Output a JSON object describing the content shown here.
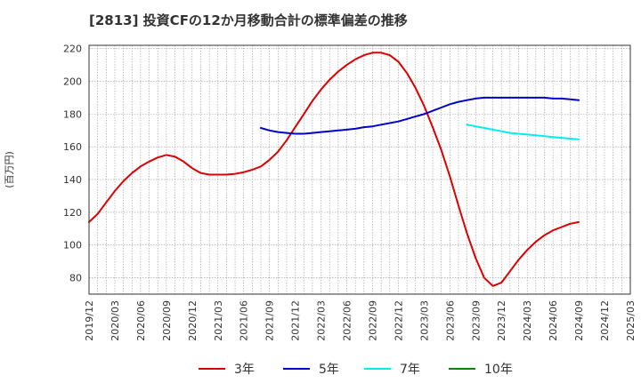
{
  "title": "[2813]  投資CFの12か月移動合計の標準偏差の推移",
  "chart_data": {
    "type": "line",
    "title": "[2813]  投資CFの12か月移動合計の標準偏差の推移",
    "xlabel": "",
    "ylabel": "(百万円)",
    "ylim": [
      70,
      222
    ],
    "yticks": [
      80,
      100,
      120,
      140,
      160,
      180,
      200,
      220
    ],
    "xticks": [
      "2019/12",
      "2020/03",
      "2020/06",
      "2020/09",
      "2020/12",
      "2021/03",
      "2021/06",
      "2021/09",
      "2021/12",
      "2022/03",
      "2022/06",
      "2022/09",
      "2022/12",
      "2023/03",
      "2023/06",
      "2023/09",
      "2023/12",
      "2024/03",
      "2024/06",
      "2024/09",
      "2024/12",
      "2025/03"
    ],
    "grid": true,
    "legend_position": "bottom",
    "series": [
      {
        "name": "3年",
        "color": "#dd0000",
        "x": [
          "2019/12",
          "2020/01",
          "2020/02",
          "2020/03",
          "2020/04",
          "2020/05",
          "2020/06",
          "2020/07",
          "2020/08",
          "2020/09",
          "2020/10",
          "2020/11",
          "2020/12",
          "2021/01",
          "2021/02",
          "2021/03",
          "2021/04",
          "2021/05",
          "2021/06",
          "2021/07",
          "2021/08",
          "2021/09",
          "2021/10",
          "2021/11",
          "2021/12",
          "2022/01",
          "2022/02",
          "2022/03",
          "2022/04",
          "2022/05",
          "2022/06",
          "2022/07",
          "2022/08",
          "2022/09",
          "2022/10",
          "2022/11",
          "2022/12",
          "2023/01",
          "2023/02",
          "2023/03",
          "2023/04",
          "2023/05",
          "2023/06",
          "2023/07",
          "2023/08",
          "2023/09",
          "2023/10",
          "2023/11",
          "2023/12",
          "2024/01",
          "2024/02",
          "2024/03",
          "2024/04",
          "2024/05",
          "2024/06",
          "2024/07",
          "2024/08",
          "2024/09"
        ],
        "values": [
          114,
          119,
          126,
          133,
          139,
          144,
          148,
          151,
          153.5,
          155,
          154,
          151,
          147,
          144,
          143,
          143,
          143,
          143.5,
          144.5,
          146,
          148,
          152,
          157,
          164,
          172,
          180,
          188,
          195,
          201,
          206,
          210,
          213.5,
          216,
          217.5,
          217.5,
          216,
          212,
          205,
          196,
          185,
          172,
          158,
          142,
          124,
          107,
          92,
          80,
          75,
          77,
          84,
          91,
          97,
          102,
          106,
          109,
          111,
          113,
          114
        ]
      },
      {
        "name": "5年",
        "color": "#0000cc",
        "x": [
          "2021/08",
          "2021/09",
          "2021/10",
          "2021/11",
          "2021/12",
          "2022/01",
          "2022/02",
          "2022/03",
          "2022/04",
          "2022/05",
          "2022/06",
          "2022/07",
          "2022/08",
          "2022/09",
          "2022/10",
          "2022/11",
          "2022/12",
          "2023/01",
          "2023/02",
          "2023/03",
          "2023/04",
          "2023/05",
          "2023/06",
          "2023/07",
          "2023/08",
          "2023/09",
          "2023/10",
          "2023/11",
          "2023/12",
          "2024/01",
          "2024/02",
          "2024/03",
          "2024/04",
          "2024/05",
          "2024/06",
          "2024/07",
          "2024/08",
          "2024/09"
        ],
        "values": [
          171.5,
          170,
          169,
          168.5,
          168,
          168,
          168.5,
          169,
          169.5,
          170,
          170.5,
          171,
          172,
          172.5,
          173.5,
          174.5,
          175.5,
          177,
          178.5,
          180,
          182,
          184,
          186,
          187.5,
          188.5,
          189.5,
          190,
          190,
          190,
          190,
          190,
          190,
          190,
          190,
          189.5,
          189.5,
          189,
          188.5
        ]
      },
      {
        "name": "7年",
        "color": "#00eeee",
        "x": [
          "2023/08",
          "2023/09",
          "2023/10",
          "2023/11",
          "2023/12",
          "2024/01",
          "2024/02",
          "2024/03",
          "2024/04",
          "2024/05",
          "2024/06",
          "2024/07",
          "2024/08",
          "2024/09"
        ],
        "values": [
          173.5,
          172.5,
          171.5,
          170.5,
          169.5,
          168.5,
          168,
          167.5,
          167,
          166.5,
          166,
          165.5,
          165,
          164.5
        ]
      },
      {
        "name": "10年",
        "color": "#008800",
        "x": [],
        "values": []
      }
    ]
  }
}
